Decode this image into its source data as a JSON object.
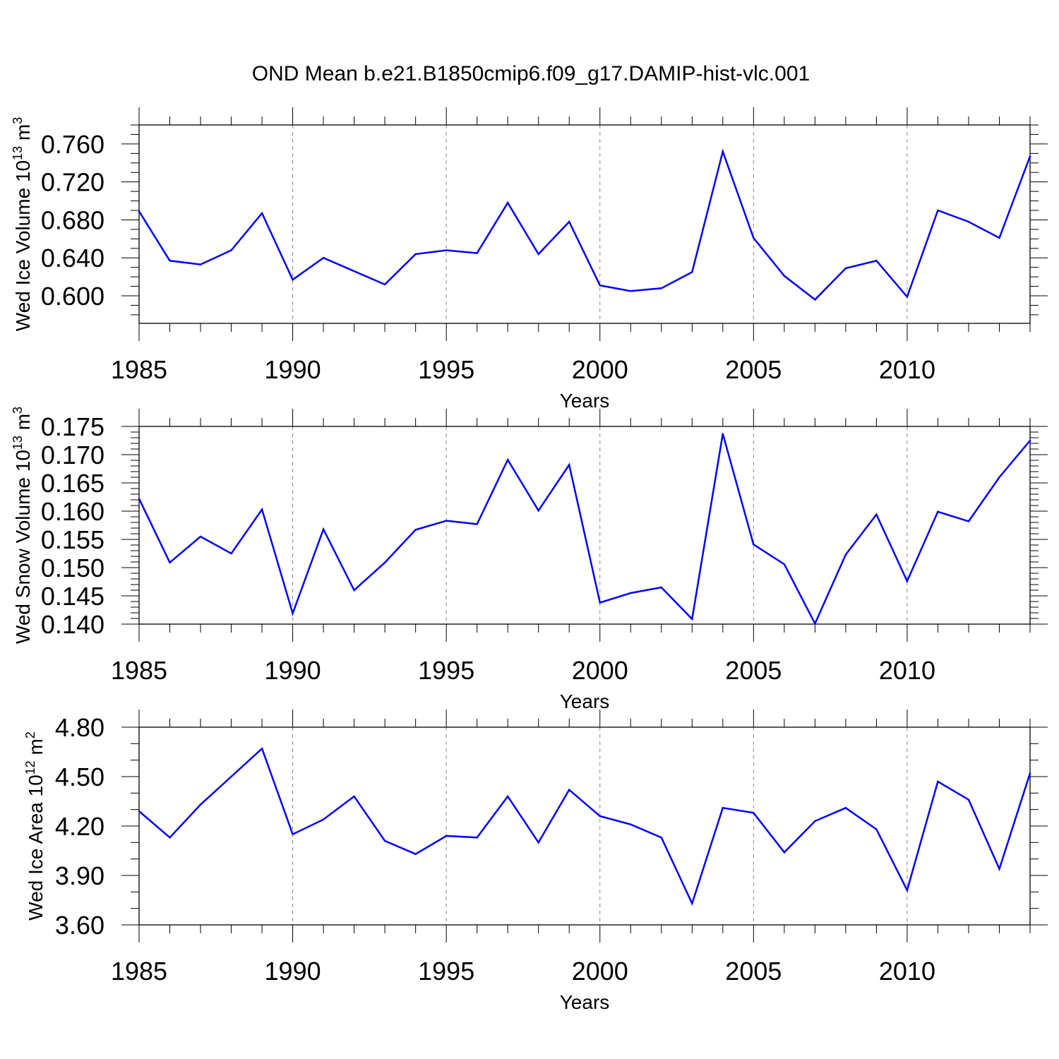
{
  "title": "OND Mean b.e21.B1850cmip6.f09_g17.DAMIP-hist-vlc.001",
  "line_color": "#0000ff",
  "chart_data": [
    {
      "type": "line",
      "ylabel": {
        "text": "Wed Ice Volume 10",
        "exp": "13",
        "unit": " m",
        "unit_exp": "3"
      },
      "xlabel": "Years",
      "x": [
        1985,
        1986,
        1987,
        1988,
        1989,
        1990,
        1991,
        1992,
        1993,
        1994,
        1995,
        1996,
        1997,
        1998,
        1999,
        2000,
        2001,
        2002,
        2003,
        2004,
        2005,
        2006,
        2007,
        2008,
        2009,
        2010,
        2011,
        2012,
        2013,
        2014
      ],
      "values": [
        0.689,
        0.637,
        0.633,
        0.648,
        0.687,
        0.617,
        0.64,
        0.626,
        0.612,
        0.644,
        0.648,
        0.645,
        0.698,
        0.644,
        0.678,
        0.611,
        0.605,
        0.608,
        0.625,
        0.752,
        0.661,
        0.621,
        0.596,
        0.629,
        0.637,
        0.599,
        0.69,
        0.678,
        0.661,
        0.747
      ],
      "xlim": [
        1985,
        2014
      ],
      "ylim": [
        0.571,
        0.78
      ],
      "yticks": [
        0.6,
        0.64,
        0.68,
        0.72,
        0.76
      ],
      "ytick_labels": [
        "0.600",
        "0.640",
        "0.680",
        "0.720",
        "0.760"
      ],
      "yminor_step": 0.01,
      "xticks": [
        1985,
        1990,
        1995,
        2000,
        2005,
        2010
      ],
      "xtick_labels": [
        "1985",
        "1990",
        "1995",
        "2000",
        "2005",
        "2010"
      ],
      "grid_x": [
        1990,
        1995,
        2000,
        2005,
        2010
      ]
    },
    {
      "type": "line",
      "ylabel": {
        "text": "Wed Snow Volume 10",
        "exp": "13",
        "unit": " m",
        "unit_exp": "3"
      },
      "xlabel": "Years",
      "x": [
        1985,
        1986,
        1987,
        1988,
        1989,
        1990,
        1991,
        1992,
        1993,
        1994,
        1995,
        1996,
        1997,
        1998,
        1999,
        2000,
        2001,
        2002,
        2003,
        2004,
        2005,
        2006,
        2007,
        2008,
        2009,
        2010,
        2011,
        2012,
        2013,
        2014
      ],
      "values": [
        0.1622,
        0.1509,
        0.1555,
        0.1525,
        0.1603,
        0.1419,
        0.1568,
        0.146,
        0.1509,
        0.1567,
        0.1583,
        0.1577,
        0.1691,
        0.1601,
        0.1682,
        0.1438,
        0.1455,
        0.1465,
        0.1409,
        0.1737,
        0.1541,
        0.1506,
        0.1401,
        0.1523,
        0.1594,
        0.1476,
        0.1599,
        0.1582,
        0.166,
        0.1725
      ],
      "xlim": [
        1985,
        2014
      ],
      "ylim": [
        0.14,
        0.175
      ],
      "yticks": [
        0.14,
        0.145,
        0.15,
        0.155,
        0.16,
        0.165,
        0.17,
        0.175
      ],
      "ytick_labels": [
        "0.140",
        "0.145",
        "0.150",
        "0.155",
        "0.160",
        "0.165",
        "0.170",
        "0.175"
      ],
      "yminor_step": 0.001,
      "xticks": [
        1985,
        1990,
        1995,
        2000,
        2005,
        2010
      ],
      "xtick_labels": [
        "1985",
        "1990",
        "1995",
        "2000",
        "2005",
        "2010"
      ],
      "grid_x": [
        1990,
        1995,
        2000,
        2005,
        2010
      ]
    },
    {
      "type": "line",
      "ylabel": {
        "text": "Wed Ice Area 10",
        "exp": "12",
        "unit": " m",
        "unit_exp": "2"
      },
      "xlabel": "Years",
      "x": [
        1985,
        1986,
        1987,
        1988,
        1989,
        1990,
        1991,
        1992,
        1993,
        1994,
        1995,
        1996,
        1997,
        1998,
        1999,
        2000,
        2001,
        2002,
        2003,
        2004,
        2005,
        2006,
        2007,
        2008,
        2009,
        2010,
        2011,
        2012,
        2013,
        2014
      ],
      "values": [
        4.29,
        4.13,
        4.33,
        4.5,
        4.67,
        4.15,
        4.24,
        4.38,
        4.11,
        4.03,
        4.14,
        4.13,
        4.38,
        4.1,
        4.42,
        4.26,
        4.21,
        4.13,
        3.73,
        4.31,
        4.28,
        4.04,
        4.23,
        4.31,
        4.18,
        3.81,
        4.47,
        4.36,
        3.94,
        4.52
      ],
      "xlim": [
        1985,
        2014
      ],
      "ylim": [
        3.6,
        4.8
      ],
      "yticks": [
        3.6,
        3.9,
        4.2,
        4.5,
        4.8
      ],
      "ytick_labels": [
        "3.60",
        "3.90",
        "4.20",
        "4.50",
        "4.80"
      ],
      "yminor_step": 0.1,
      "xticks": [
        1985,
        1990,
        1995,
        2000,
        2005,
        2010
      ],
      "xtick_labels": [
        "1985",
        "1990",
        "1995",
        "2000",
        "2005",
        "2010"
      ],
      "grid_x": [
        1990,
        1995,
        2000,
        2005,
        2010
      ]
    }
  ]
}
